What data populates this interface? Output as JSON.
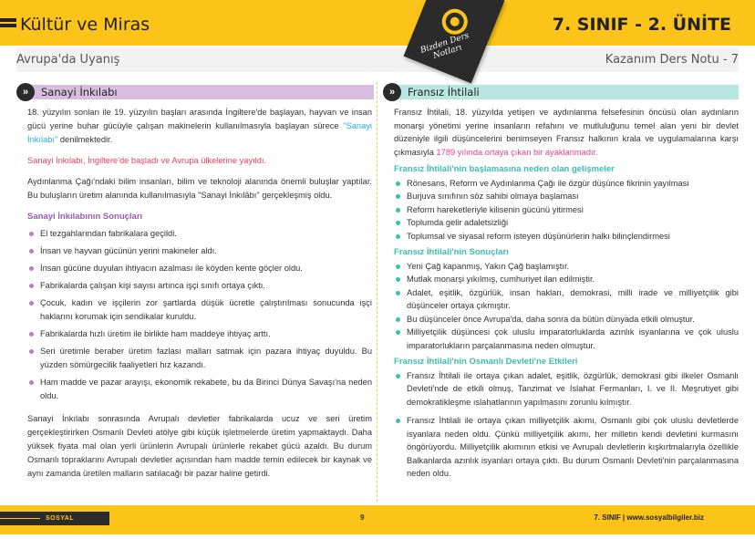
{
  "header": {
    "title": "Kültür ve Miras",
    "unit": "7. SINIF - 2. ÜNİTE",
    "subtitle": "Avrupa'da Uyanış",
    "note": "Kazanım Ders Notu - 7",
    "badge": "Bizden Ders Notları"
  },
  "colors": {
    "yellow": "#fcc419",
    "purple_bar": "#d9bde0",
    "teal_bar": "#b8e6e0",
    "blue_link": "#29a9e0",
    "red_text": "#e83e5c",
    "pink_text": "#e8408f",
    "purple_head": "#9b59b6",
    "teal_head": "#3bbfb0"
  },
  "left": {
    "heading": "Sanayi İnkılabı",
    "p1_before": "18. yüzyılın sonları ile 19. yüzyılın başları arasında İngiltere'de başlayan, hayvan ve insan gücü yerine buhar gücüyle çalışan makinelerin kullanılmasıyla başlayan sürece ",
    "p1_link": "\"Sanayi İnkılabı\"",
    "p1_after": " denilmektedir.",
    "p2": "Sanayi İnkılabı, İngiltere'de başladı ve Avrupa ülkelerine yayıldı.",
    "p3": "Aydınlanma Çağı'ndaki bilim insanları, bilim ve teknoloji alanında önemli buluşlar yaptılar. Bu buluşların üretim alanında kullanılmasıyla \"Sanayi İnkılâbı\" gerçekleşmiş oldu.",
    "results_heading": "Sanayi İnkılabının Sonuçları",
    "results": [
      "El tezgahlarından fabrikalara geçildi.",
      "İnsan ve hayvan gücünün yerini makineler aldı.",
      "İnsan gücüne duyulan ihtiyacın azalması ile köyden kente göçler oldu.",
      "Fabrikalarda çalışan kişi sayısı artınca işçi sınıfı ortaya çıktı.",
      "Çocuk, kadın ve işçilerin zor şartlarda düşük ücretle çalıştırılması sonucunda işçi haklarını korumak için sendikalar kuruldu.",
      "Fabrikalarda hızlı üretim ile birlikte ham maddeye ihtiyaç arttı.",
      "Seri üretimle beraber üretim fazlası malları satmak için pazara ihtiyaç duyuldu. Bu yüzden sömürgecilik faaliyetleri hız kazandı.",
      "Ham madde ve pazar arayışı, ekonomik rekabete, bu da Birinci Dünya Savaşı'na neden oldu."
    ],
    "p4": "Sanayi İnkılabı sonrasında Avrupalı devletler fabrikalarda ucuz ve seri üretim gerçekleştirirken Osmanlı Devleti atölye gibi küçük işletmelerde üretim yapmaktaydı. Daha yüksek fiyata mal olan yerli ürünlerin Avrupalı ürünlerle rekabet gücü azaldı. Bu durum Osmanlı topraklarını Avrupalı devletler açısından ham madde temin edilecek bir kaynak ve aynı zamanda üretilen malların satılacağı bir pazar haline getirdi."
  },
  "right": {
    "heading": "Fransız İhtilali",
    "p1_before": "Fransız İhtilali, 18. yüzyılda yetişen ve aydınlanma felsefesinin öncüsü olan aydınların monarşi yönetimi yerine insanların refahını ve mutluluğunu temel alan yeni bir devlet düzeniyle ilgili düşüncelerini benimseyen Fransız halkının krala ve uygulamalarına karşı çıkmasıyla ",
    "p1_highlight": "1789 yılında ortaya çıkan bir ayaklanmadır.",
    "causes_heading": "Fransız İhtilali'nin başlamasına neden olan gelişmeler",
    "causes": [
      "Rönesans, Reform ve Aydınlanma Çağı ile özgür düşünce fikrinin yayılması",
      "Burjuva sınıfının söz sahibi olmaya başlaması",
      "Reform hareketleriyle kilisenin gücünü yitirmesi",
      "Toplumda gelir adaletsizliği",
      "Toplumsal ve siyasal reform isteyen düşünürlerin halkı bilinçlendirmesi"
    ],
    "results_heading": "Fransız İhtilali'nin Sonuçları",
    "results": [
      "Yeni Çağ kapanmış, Yakın Çağ başlamıştır.",
      "Mutlak monarşi yıkılmış, cumhuriyet ilan edilmiştir.",
      "Adalet, eşitlik, özgürlük, insan hakları, demokrasi, milli irade ve milliyetçilik gibi düşünceler ortaya çıkmıştır.",
      "Bu düşünceler önce Avrupa'da, daha sonra da bütün dünyada etkili olmuştur.",
      "Milliyetçilik düşüncesi çok uluslu imparatorluklarda azınlık isyanlarına ve çok uluslu imparatorlukların parçalanmasına neden olmuştur."
    ],
    "ottoman_heading": "Fransız İhtilali'nin Osmanlı Devleti'ne Etkileri",
    "ottoman": [
      "Fransız İhtilali ile ortaya çıkan adalet, eşitlik, özgürlük, demokrasi gibi ilkeler Osmanlı Devleti'nde de etkili olmuş, Tanzimat ve Islahat Fermanları, I. ve II. Meşrutiyet gibi demokratikleşme ıslahatlarının yapılmasını zorunlu kılmıştır.",
      "Fransız İhtilali ile ortaya çıkan milliyetçilik akımı, Osmanlı gibi çok uluslu devletlerde isyanlara neden oldu. Çünkü milliyetçilik akımı, her milletin kendi devletini kurmasını öngörüyordu. Milliyetçilik akımının etkisi ve Avrupalı devletlerin kışkırtmalarıyla özellikle Balkanlarda azınlık isyanları ortaya çıktı. Bu durum Osmanlı Devleti'nin parçalanmasına neden oldu."
    ]
  },
  "footer": {
    "subject": "SOSYAL BİLGİLER",
    "page": "9",
    "site": "7. SINIF  |  www.sosyalbilgiler.biz"
  }
}
